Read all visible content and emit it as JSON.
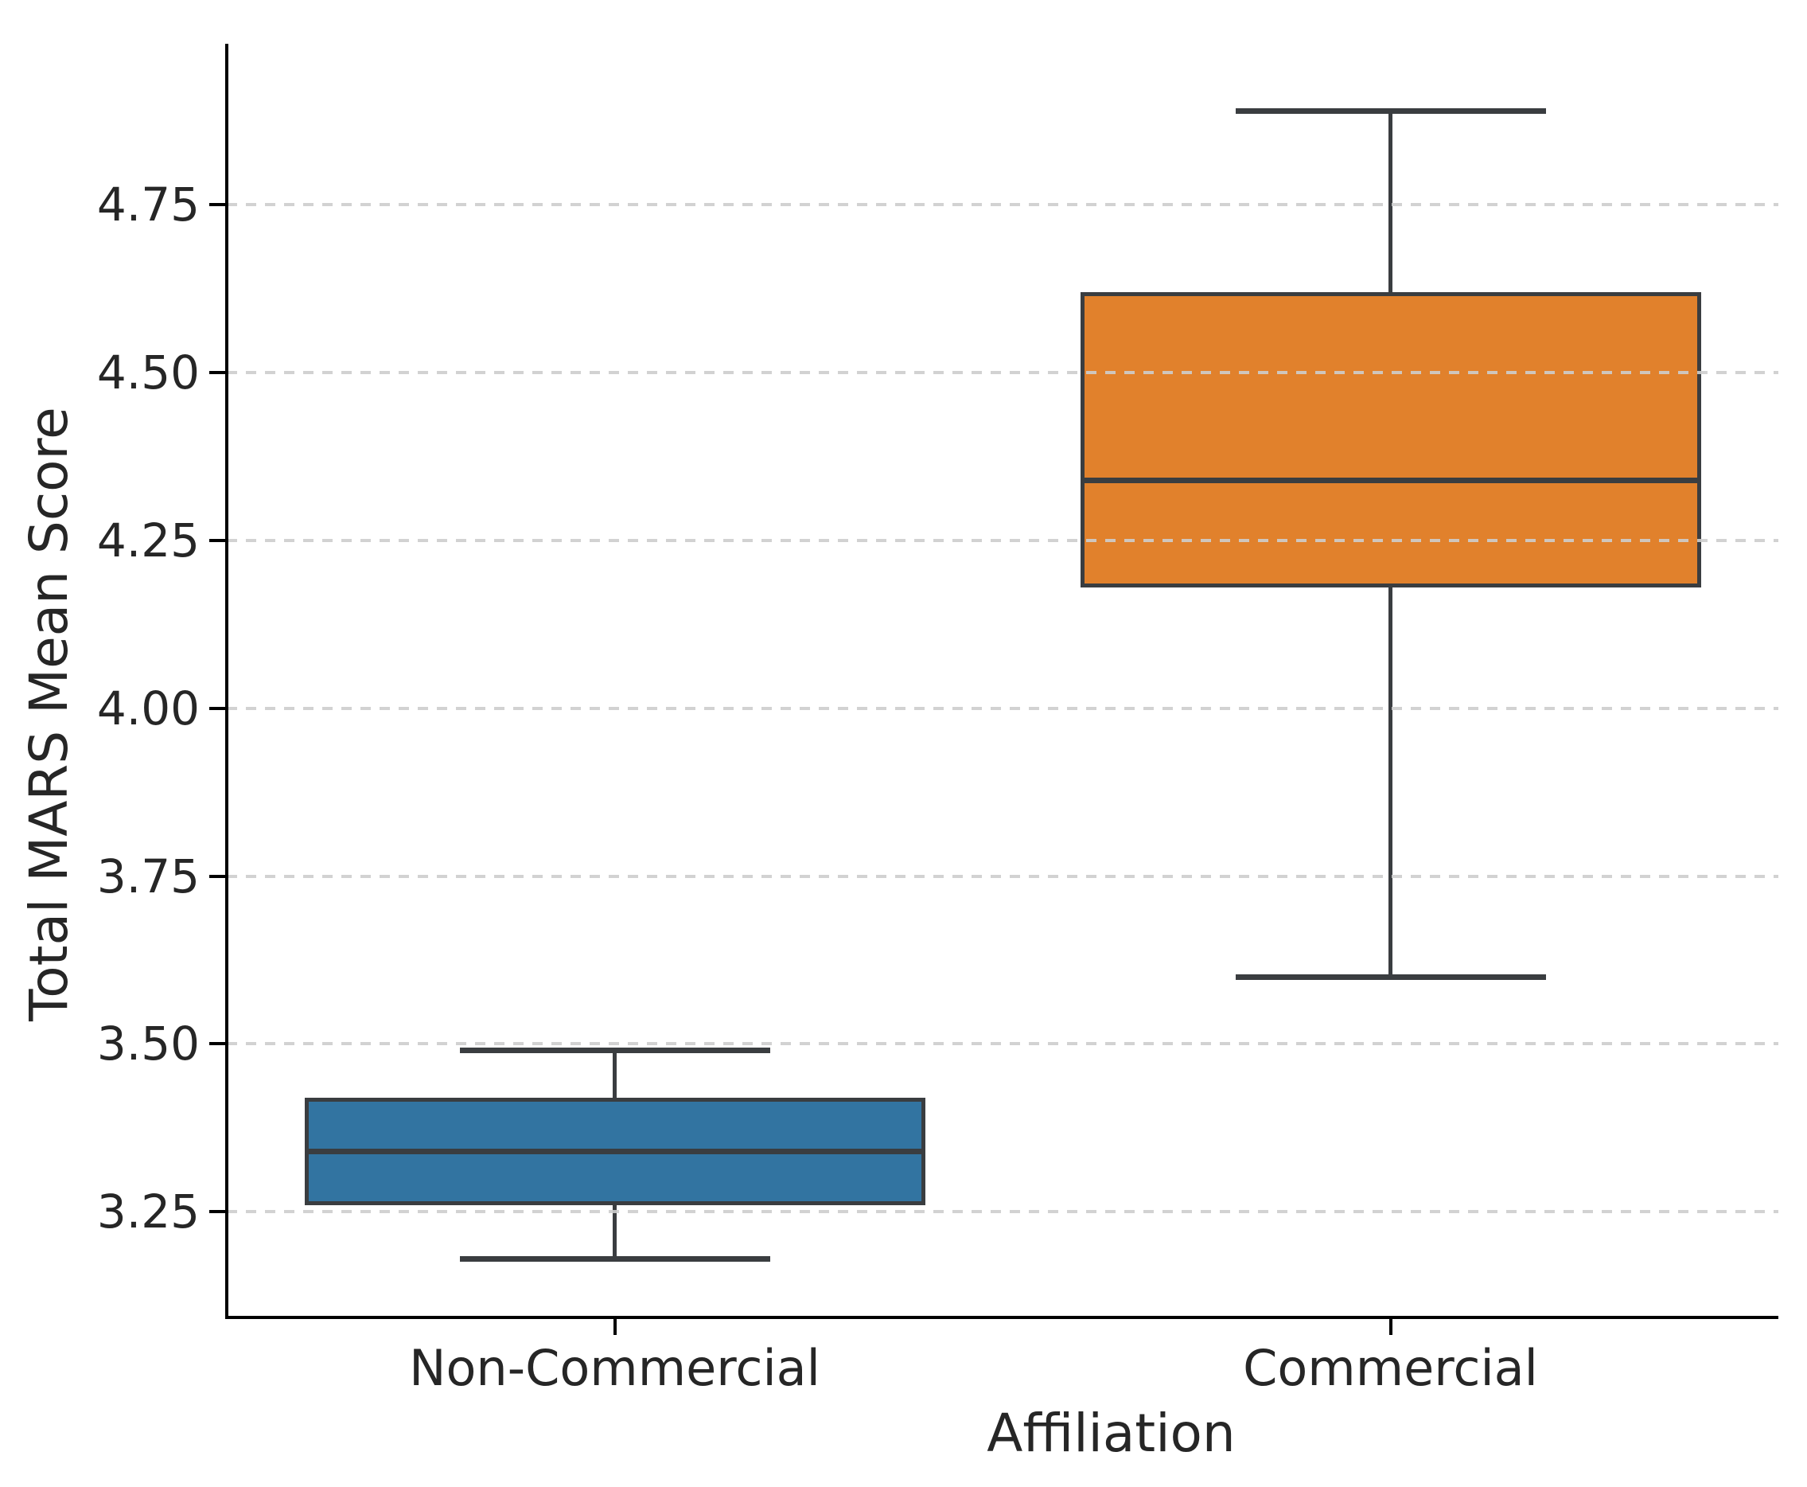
{
  "chart_data": {
    "type": "box",
    "title": "",
    "xlabel": "Affiliation",
    "ylabel": "Total MARS Mean Score",
    "categories": [
      "Non-Commercial",
      "Commercial"
    ],
    "ytick_labels": [
      "4.75",
      "4.50",
      "4.25",
      "4.00",
      "3.75",
      "3.50",
      "3.25"
    ],
    "yticks": [
      4.75,
      4.5,
      4.25,
      4.0,
      3.75,
      3.5,
      3.25
    ],
    "ylim": [
      3.095,
      4.99
    ],
    "grid": "horizontal-dashed",
    "legend": "none",
    "series": [
      {
        "name": "Non-Commercial",
        "color": "#3274a1",
        "whisker_low": 3.18,
        "q1": 3.26,
        "median": 3.34,
        "q3": 3.42,
        "whisker_high": 3.49
      },
      {
        "name": "Commercial",
        "color": "#e1812c",
        "whisker_low": 3.6,
        "q1": 4.18,
        "median": 4.34,
        "q3": 4.62,
        "whisker_high": 4.89
      }
    ],
    "colors": {
      "box_edge": "#3a3d40",
      "gridline": "#cdcdcd",
      "spine": "#000000",
      "tick_text": "#262626"
    }
  }
}
